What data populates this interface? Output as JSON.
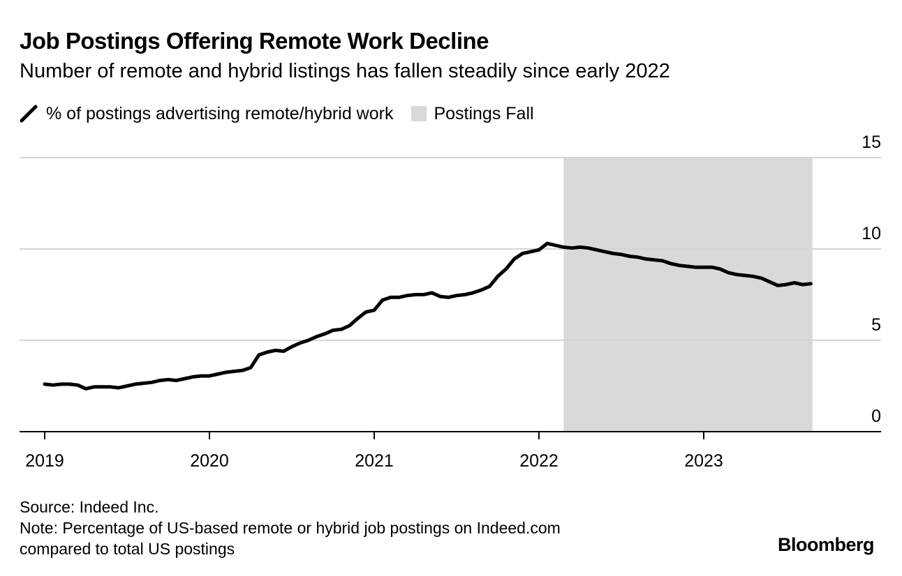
{
  "chart_data": {
    "type": "line",
    "title": "Job Postings Offering Remote Work Decline",
    "subtitle": "Number of remote and hybrid listings has fallen steadily since early 2022",
    "xlabel": "",
    "ylabel": "",
    "x_ticks": [
      "2019",
      "2020",
      "2021",
      "2022",
      "2023"
    ],
    "y_ticks": [
      "0",
      "5",
      "10",
      "15"
    ],
    "ylim": [
      0,
      15
    ],
    "xlim": [
      2018.85,
      2023.93
    ],
    "grid": true,
    "legend_position": "top-left",
    "series": [
      {
        "name": "% of postings advertising remote/hybrid work",
        "color": "#000000",
        "x": [
          2019.0,
          2019.05,
          2019.1,
          2019.15,
          2019.2,
          2019.25,
          2019.3,
          2019.35,
          2019.4,
          2019.45,
          2019.5,
          2019.55,
          2019.6,
          2019.65,
          2019.7,
          2019.75,
          2019.8,
          2019.85,
          2019.9,
          2019.95,
          2020.0,
          2020.05,
          2020.1,
          2020.15,
          2020.2,
          2020.25,
          2020.3,
          2020.35,
          2020.4,
          2020.45,
          2020.5,
          2020.55,
          2020.6,
          2020.65,
          2020.7,
          2020.75,
          2020.8,
          2020.85,
          2020.9,
          2020.95,
          2021.0,
          2021.05,
          2021.1,
          2021.15,
          2021.2,
          2021.25,
          2021.3,
          2021.35,
          2021.4,
          2021.45,
          2021.5,
          2021.55,
          2021.6,
          2021.65,
          2021.7,
          2021.75,
          2021.8,
          2021.85,
          2021.9,
          2021.95,
          2022.0,
          2022.05,
          2022.1,
          2022.15,
          2022.2,
          2022.25,
          2022.3,
          2022.35,
          2022.4,
          2022.45,
          2022.5,
          2022.55,
          2022.6,
          2022.65,
          2022.7,
          2022.75,
          2022.8,
          2022.85,
          2022.9,
          2022.95,
          2023.0,
          2023.05,
          2023.1,
          2023.15,
          2023.2,
          2023.25,
          2023.3,
          2023.35,
          2023.4,
          2023.45,
          2023.5,
          2023.55,
          2023.6,
          2023.65
        ],
        "y": [
          2.6,
          2.55,
          2.6,
          2.6,
          2.55,
          2.35,
          2.45,
          2.45,
          2.45,
          2.4,
          2.5,
          2.6,
          2.65,
          2.7,
          2.8,
          2.85,
          2.8,
          2.9,
          3.0,
          3.05,
          3.05,
          3.15,
          3.25,
          3.3,
          3.35,
          3.5,
          4.2,
          4.35,
          4.45,
          4.4,
          4.65,
          4.85,
          5.0,
          5.2,
          5.35,
          5.55,
          5.6,
          5.8,
          6.2,
          6.55,
          6.65,
          7.2,
          7.35,
          7.35,
          7.45,
          7.5,
          7.5,
          7.6,
          7.4,
          7.35,
          7.45,
          7.5,
          7.6,
          7.75,
          7.95,
          8.5,
          8.9,
          9.45,
          9.75,
          9.85,
          9.95,
          10.3,
          10.2,
          10.1,
          10.05,
          10.1,
          10.05,
          9.95,
          9.85,
          9.75,
          9.7,
          9.6,
          9.55,
          9.45,
          9.4,
          9.35,
          9.2,
          9.1,
          9.05,
          9.0,
          9.0,
          9.0,
          8.9,
          8.7,
          8.6,
          8.55,
          8.5,
          8.4,
          8.2,
          8.0,
          8.05,
          8.15,
          8.05,
          8.1
        ]
      }
    ],
    "highlight": {
      "label": "Postings Fall",
      "x_start": 2022.15,
      "x_end": 2023.66,
      "color": "#d9d9d9"
    }
  },
  "footer": {
    "source": "Source: Indeed Inc.",
    "note_line1": "Note: Percentage of US-based remote or hybrid job postings on Indeed.com",
    "note_line2": "compared to total US postings"
  },
  "brand": "Bloomberg"
}
